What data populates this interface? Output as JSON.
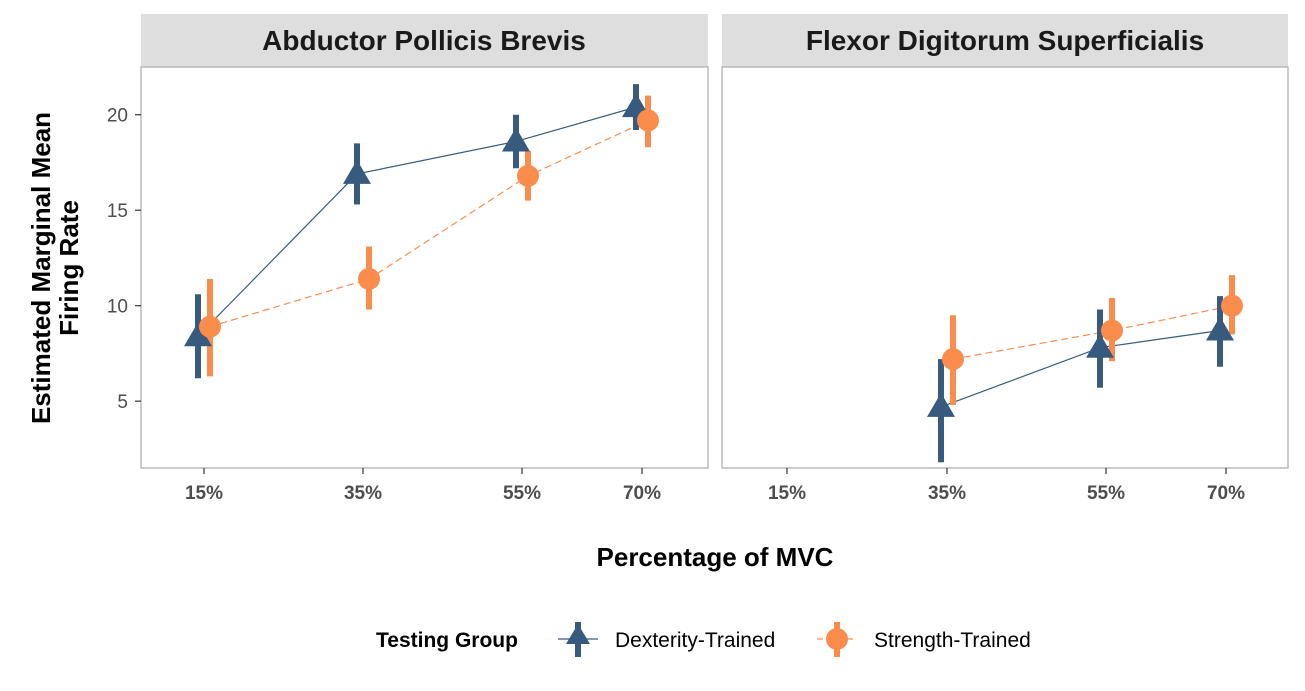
{
  "chart_data": {
    "type": "line",
    "facets": [
      "Abductor Pollicis Brevis",
      "Flexor Digitorum Superficialis"
    ],
    "categories": [
      "15%",
      "35%",
      "55%",
      "70%"
    ],
    "xlabel": "Percentage of MVC",
    "ylabel": [
      "Estimated Marginal Mean",
      "Firing Rate"
    ],
    "ylim": [
      1.5,
      22.5
    ],
    "yticks": [
      5,
      10,
      15,
      20
    ],
    "grid": false,
    "legend": {
      "title": "Testing Group",
      "position": "bottom"
    },
    "series": [
      {
        "name": "Dexterity-Trained",
        "color": "#375a7f",
        "marker": "triangle",
        "linestyle": "solid",
        "panels": [
          {
            "values": [
              8.4,
              16.9,
              18.6,
              20.4
            ],
            "lower": [
              6.2,
              15.3,
              17.2,
              19.2
            ],
            "upper": [
              10.6,
              18.5,
              20.0,
              21.6
            ]
          },
          {
            "values": [
              null,
              4.7,
              7.8,
              8.7
            ],
            "lower": [
              null,
              1.8,
              5.7,
              6.8
            ],
            "upper": [
              null,
              7.2,
              9.8,
              10.5
            ]
          }
        ]
      },
      {
        "name": "Strength-Trained",
        "color": "#fb8d4c",
        "marker": "circle",
        "linestyle": "dashed",
        "panels": [
          {
            "values": [
              8.9,
              11.4,
              16.8,
              19.7
            ],
            "lower": [
              6.3,
              9.8,
              15.5,
              18.3
            ],
            "upper": [
              11.4,
              13.1,
              18.1,
              21.0
            ]
          },
          {
            "values": [
              null,
              7.2,
              8.7,
              10.0
            ],
            "lower": [
              null,
              4.8,
              7.1,
              8.5
            ],
            "upper": [
              null,
              9.5,
              10.4,
              11.6
            ]
          }
        ]
      }
    ]
  }
}
